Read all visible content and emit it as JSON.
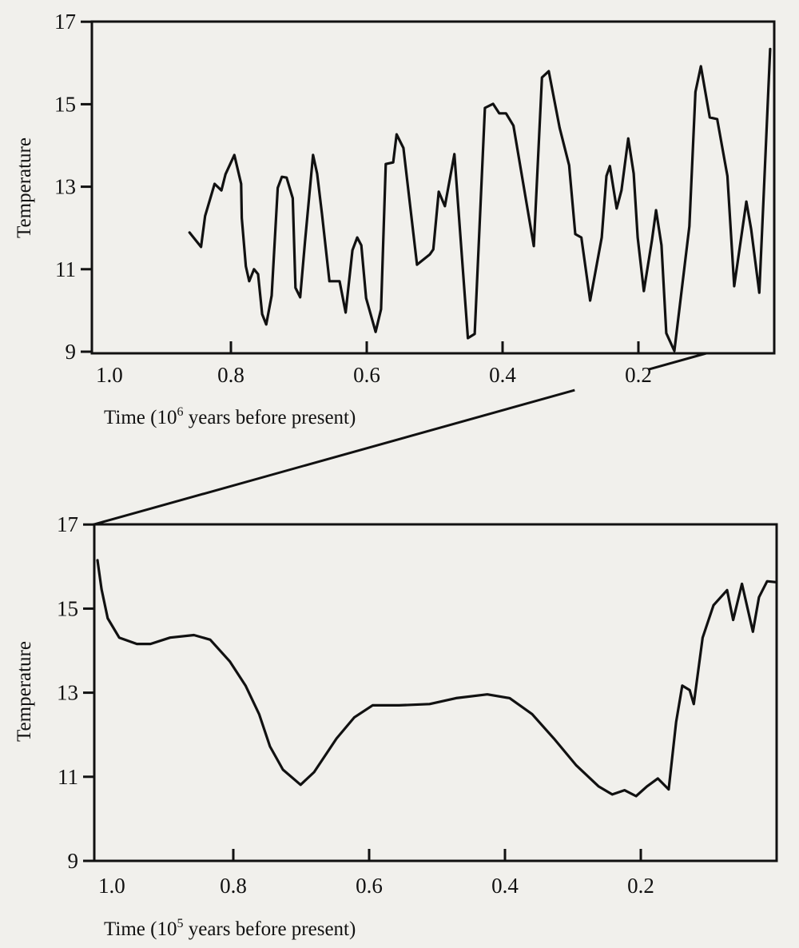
{
  "chart_data": [
    {
      "type": "line",
      "xlabel": "Time (10",
      "xlabel_sup": "6",
      "xlabel_rest": " years before present)",
      "ylabel": "Temperature",
      "xlim": [
        1.0,
        0.0
      ],
      "ylim": [
        9,
        17
      ],
      "x_reversed": true,
      "grid": false,
      "yticks": [
        "17",
        "15",
        "13",
        "11",
        "9"
      ],
      "ytick_values": [
        17,
        15,
        13,
        11,
        9
      ],
      "xticks": [
        "1.0",
        "0.8",
        "0.6",
        "0.4",
        "0.2"
      ],
      "xtick_values": [
        1.0,
        0.8,
        0.6,
        0.4,
        0.2
      ],
      "zoom_marker_x": 0.1,
      "points": [
        [
          0.861,
          11.89
        ],
        [
          0.844,
          11.54
        ],
        [
          0.838,
          12.29
        ],
        [
          0.824,
          13.07
        ],
        [
          0.814,
          12.91
        ],
        [
          0.808,
          13.3
        ],
        [
          0.795,
          13.77
        ],
        [
          0.785,
          13.07
        ],
        [
          0.784,
          12.24
        ],
        [
          0.778,
          11.07
        ],
        [
          0.773,
          10.71
        ],
        [
          0.766,
          11.0
        ],
        [
          0.76,
          10.88
        ],
        [
          0.754,
          9.91
        ],
        [
          0.748,
          9.66
        ],
        [
          0.74,
          10.36
        ],
        [
          0.731,
          12.97
        ],
        [
          0.725,
          13.24
        ],
        [
          0.718,
          13.22
        ],
        [
          0.709,
          12.72
        ],
        [
          0.705,
          10.55
        ],
        [
          0.698,
          10.32
        ],
        [
          0.691,
          11.66
        ],
        [
          0.679,
          13.77
        ],
        [
          0.673,
          13.32
        ],
        [
          0.666,
          12.35
        ],
        [
          0.655,
          10.71
        ],
        [
          0.64,
          10.71
        ],
        [
          0.631,
          9.95
        ],
        [
          0.621,
          11.46
        ],
        [
          0.614,
          11.77
        ],
        [
          0.608,
          11.58
        ],
        [
          0.601,
          10.3
        ],
        [
          0.587,
          9.48
        ],
        [
          0.579,
          10.03
        ],
        [
          0.572,
          13.55
        ],
        [
          0.561,
          13.59
        ],
        [
          0.556,
          14.27
        ],
        [
          0.546,
          13.94
        ],
        [
          0.526,
          11.11
        ],
        [
          0.507,
          11.36
        ],
        [
          0.502,
          11.48
        ],
        [
          0.494,
          12.88
        ],
        [
          0.485,
          12.53
        ],
        [
          0.471,
          13.79
        ],
        [
          0.451,
          9.33
        ],
        [
          0.441,
          9.43
        ],
        [
          0.426,
          14.91
        ],
        [
          0.414,
          15.01
        ],
        [
          0.405,
          14.78
        ],
        [
          0.395,
          14.78
        ],
        [
          0.384,
          14.48
        ],
        [
          0.354,
          11.56
        ],
        [
          0.342,
          15.65
        ],
        [
          0.332,
          15.8
        ],
        [
          0.316,
          14.43
        ],
        [
          0.302,
          13.52
        ],
        [
          0.293,
          11.85
        ],
        [
          0.284,
          11.77
        ],
        [
          0.271,
          10.24
        ],
        [
          0.254,
          11.77
        ],
        [
          0.247,
          13.26
        ],
        [
          0.242,
          13.5
        ],
        [
          0.232,
          12.47
        ],
        [
          0.225,
          12.91
        ],
        [
          0.215,
          14.17
        ],
        [
          0.207,
          13.32
        ],
        [
          0.201,
          11.77
        ],
        [
          0.192,
          10.47
        ],
        [
          0.18,
          11.71
        ],
        [
          0.174,
          12.43
        ],
        [
          0.166,
          11.58
        ],
        [
          0.159,
          9.45
        ],
        [
          0.147,
          9.02
        ],
        [
          0.125,
          12.04
        ],
        [
          0.116,
          15.3
        ],
        [
          0.108,
          15.92
        ],
        [
          0.095,
          14.68
        ],
        [
          0.084,
          14.64
        ],
        [
          0.069,
          13.26
        ],
        [
          0.059,
          10.59
        ],
        [
          0.041,
          12.64
        ],
        [
          0.034,
          11.97
        ],
        [
          0.022,
          10.43
        ],
        [
          0.016,
          12.62
        ],
        [
          0.006,
          16.34
        ]
      ]
    },
    {
      "type": "line",
      "xlabel": "Time (10",
      "xlabel_sup": "5",
      "xlabel_rest": " years before present)",
      "ylabel": "Temperature",
      "xlim": [
        1.0,
        0.0
      ],
      "ylim": [
        9,
        17
      ],
      "x_reversed": true,
      "grid": false,
      "yticks": [
        "17",
        "15",
        "13",
        "11",
        "9"
      ],
      "ytick_values": [
        17,
        15,
        13,
        11,
        9
      ],
      "xticks": [
        "1.0",
        "0.8",
        "0.6",
        "0.4",
        "0.2"
      ],
      "xtick_values": [
        1.0,
        0.8,
        0.6,
        0.4,
        0.2
      ],
      "points": [
        [
          1.0,
          16.15
        ],
        [
          0.994,
          15.46
        ],
        [
          0.985,
          14.77
        ],
        [
          0.968,
          14.31
        ],
        [
          0.942,
          14.16
        ],
        [
          0.922,
          14.16
        ],
        [
          0.893,
          14.31
        ],
        [
          0.858,
          14.37
        ],
        [
          0.834,
          14.26
        ],
        [
          0.805,
          13.74
        ],
        [
          0.782,
          13.17
        ],
        [
          0.762,
          12.49
        ],
        [
          0.746,
          11.72
        ],
        [
          0.727,
          11.17
        ],
        [
          0.701,
          10.81
        ],
        [
          0.681,
          11.11
        ],
        [
          0.648,
          11.91
        ],
        [
          0.622,
          12.41
        ],
        [
          0.595,
          12.7
        ],
        [
          0.556,
          12.7
        ],
        [
          0.511,
          12.73
        ],
        [
          0.472,
          12.87
        ],
        [
          0.426,
          12.96
        ],
        [
          0.393,
          12.87
        ],
        [
          0.36,
          12.49
        ],
        [
          0.328,
          11.91
        ],
        [
          0.295,
          11.27
        ],
        [
          0.262,
          10.77
        ],
        [
          0.242,
          10.58
        ],
        [
          0.224,
          10.68
        ],
        [
          0.207,
          10.54
        ],
        [
          0.191,
          10.77
        ],
        [
          0.175,
          10.96
        ],
        [
          0.159,
          10.7
        ],
        [
          0.148,
          12.3
        ],
        [
          0.139,
          13.17
        ],
        [
          0.128,
          13.06
        ],
        [
          0.122,
          12.73
        ],
        [
          0.109,
          14.31
        ],
        [
          0.093,
          15.08
        ],
        [
          0.073,
          15.44
        ],
        [
          0.064,
          14.73
        ],
        [
          0.051,
          15.59
        ],
        [
          0.035,
          14.45
        ],
        [
          0.026,
          15.27
        ],
        [
          0.014,
          15.65
        ],
        [
          0.001,
          15.63
        ]
      ]
    }
  ]
}
